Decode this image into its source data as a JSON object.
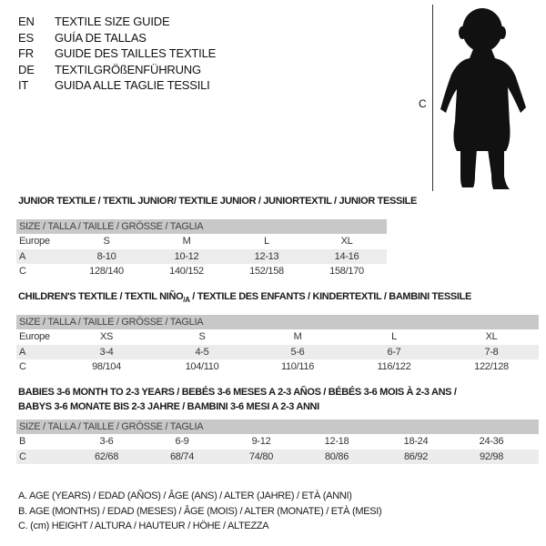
{
  "languages": [
    {
      "code": "EN",
      "title": "TEXTILE SIZE GUIDE"
    },
    {
      "code": "ES",
      "title": "GUÍA DE TALLAS"
    },
    {
      "code": "FR",
      "title": "GUIDE DES TAILLES TEXTILE"
    },
    {
      "code": "DE",
      "title": "TEXTILGRÖßENFÜHRUNG"
    },
    {
      "code": "IT",
      "title": "GUIDA ALLE TAGLIE TESSILI"
    }
  ],
  "figure": {
    "label": "C",
    "icon": "child-silhouette-icon"
  },
  "size_header": "SIZE / TALLA / TAILLE / GRÖSSE / TAGLIA",
  "junior": {
    "title": "JUNIOR TEXTILE / TEXTIL JUNIOR/ TEXTILE JUNIOR / JUNIORTEXTIL / JUNIOR TESSILE",
    "rows": [
      {
        "label": "Europe",
        "values": [
          "S",
          "M",
          "L",
          "XL"
        ]
      },
      {
        "label": "A",
        "values": [
          "8-10",
          "10-12",
          "12-13",
          "14-16"
        ]
      },
      {
        "label": "C",
        "values": [
          "128/140",
          "140/152",
          "152/158",
          "158/170"
        ]
      }
    ]
  },
  "children": {
    "title": "CHILDREN'S TEXTILE / TEXTIL NIÑO",
    "title_sub": "/A",
    "title_rest": " / TEXTILE DES ENFANTS / KINDERTEXTIL / BAMBINI TESSILE",
    "rows": [
      {
        "label": "Europe",
        "values": [
          "XS",
          "S",
          "M",
          "L",
          "XL"
        ]
      },
      {
        "label": "A",
        "values": [
          "3-4",
          "4-5",
          "5-6",
          "6-7",
          "7-8"
        ]
      },
      {
        "label": "C",
        "values": [
          "98/104",
          "104/110",
          "110/116",
          "116/122",
          "122/128"
        ]
      }
    ]
  },
  "babies": {
    "title_line1": "BABIES 3-6 MONTH TO 2-3 YEARS / BEBÉS 3-6 MESES A 2-3 AÑOS / BÉBÉS 3-6 MOIS À 2-3 ANS /",
    "title_line2": "BABYS 3-6 MONATE BIS 2-3 JAHRE / BAMBINI 3-6 MESI A 2-3 ANNI",
    "rows": [
      {
        "label": "B",
        "values": [
          "3-6",
          "6-9",
          "9-12",
          "12-18",
          "18-24",
          "24-36"
        ]
      },
      {
        "label": "C",
        "values": [
          "62/68",
          "68/74",
          "74/80",
          "80/86",
          "86/92",
          "92/98"
        ]
      }
    ]
  },
  "legend": [
    "A. AGE (YEARS) / EDAD (AÑOS) / ÂGE (ANS) / ALTER (JAHRE) / ETÀ (ANNI)",
    "B. AGE (MONTHS) / EDAD (MESES) / ÂGE (MOIS) / ALTER (MONATE) / ETÀ (MESI)",
    "C. (cm) HEIGHT / ALTURA / HAUTEUR / HÖHE / ALTEZZA"
  ],
  "colors": {
    "header_gray": "#c8c8c8",
    "stripe_gray": "#ececec"
  }
}
